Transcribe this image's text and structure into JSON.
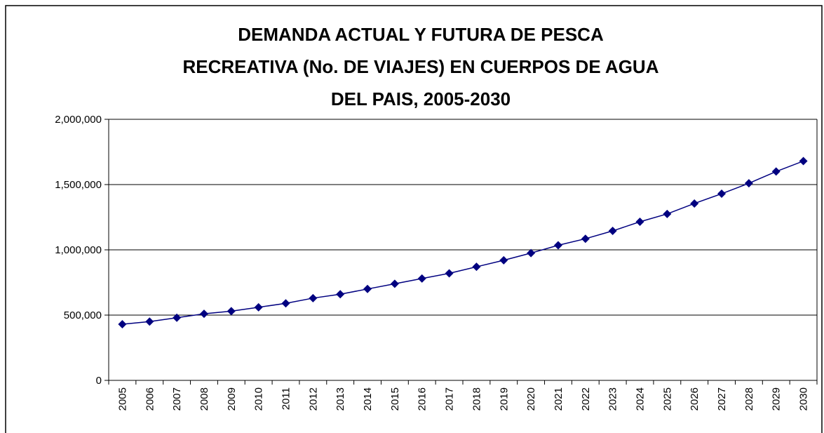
{
  "chart_data": {
    "type": "line",
    "title": [
      "DEMANDA ACTUAL Y FUTURA DE PESCA",
      "RECREATIVA (No. DE VIAJES) EN CUERPOS DE AGUA",
      "DEL PAIS, 2005-2030"
    ],
    "categories": [
      "2005",
      "2006",
      "2007",
      "2008",
      "2009",
      "2010",
      "2011",
      "2012",
      "2013",
      "2014",
      "2015",
      "2016",
      "2017",
      "2018",
      "2019",
      "2020",
      "2021",
      "2022",
      "2023",
      "2024",
      "2025",
      "2026",
      "2027",
      "2028",
      "2029",
      "2030"
    ],
    "series": [
      {
        "color": "#000080",
        "values": [
          430000,
          450000,
          480000,
          510000,
          530000,
          560000,
          590000,
          630000,
          660000,
          700000,
          740000,
          780000,
          820000,
          870000,
          920000,
          975000,
          1035000,
          1085000,
          1145000,
          1215000,
          1275000,
          1355000,
          1430000,
          1510000,
          1600000,
          1680000
        ]
      }
    ],
    "ylim": [
      0,
      2000000
    ],
    "yticks": [
      0,
      {
        "value": 500000,
        "label": "500,000"
      },
      {
        "value": 1000000,
        "label": "1,000,000"
      },
      {
        "value": 1500000,
        "label": "1,500,000"
      },
      {
        "value": 2000000,
        "label": "2,000,000"
      }
    ],
    "grid": true
  }
}
